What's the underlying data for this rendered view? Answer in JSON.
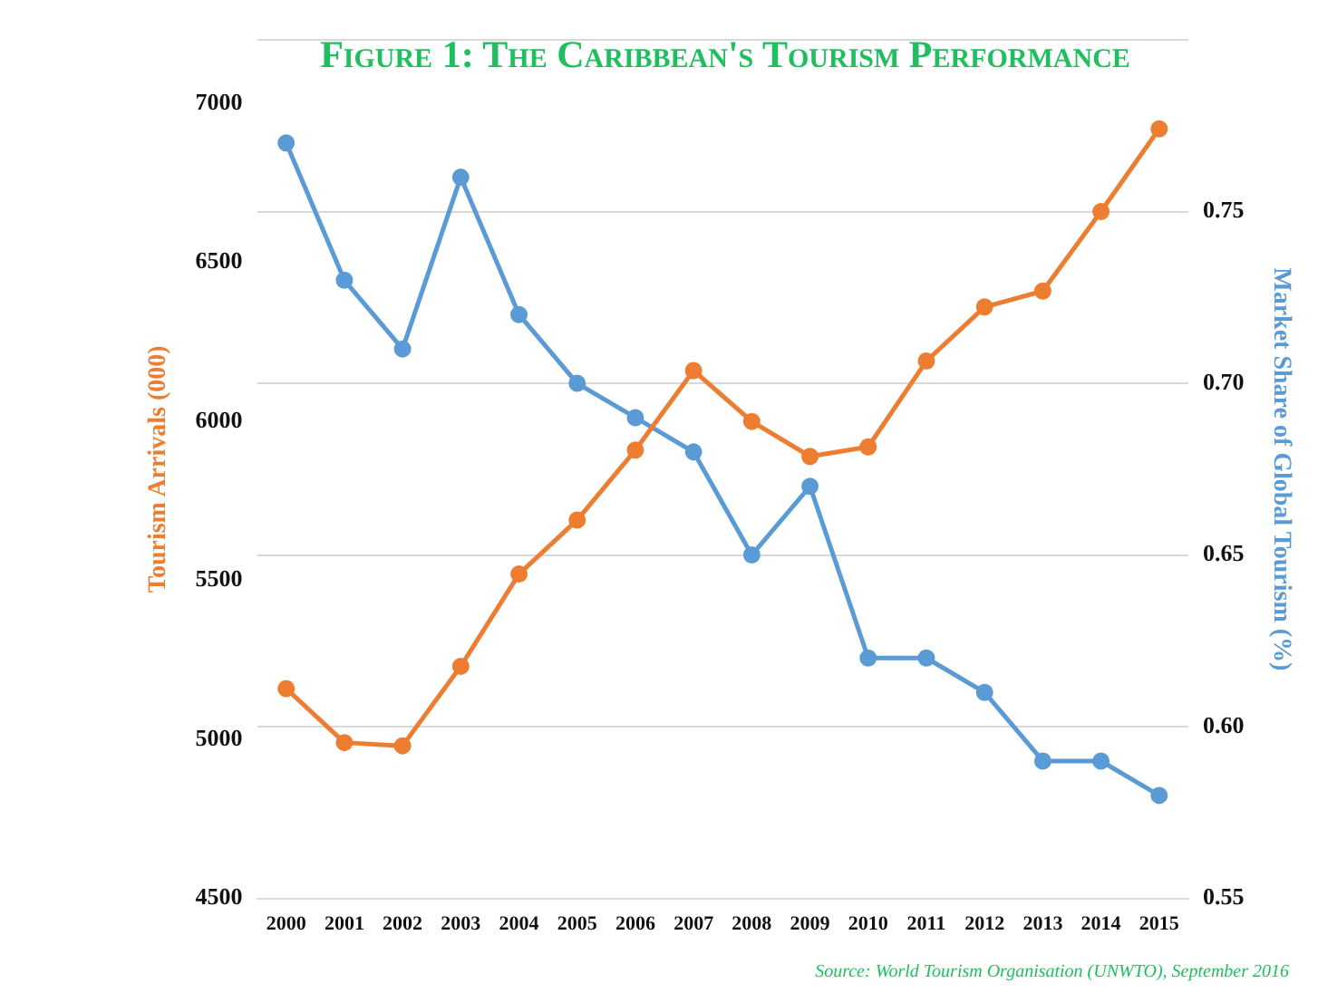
{
  "chart_data": {
    "type": "line",
    "title": "Figure 1: The Caribbean's Tourism Performance",
    "ylabel": "Tourism Arrivals (000)",
    "y2label": "Market Share of Global Tourism (%)",
    "categories": [
      "2000",
      "2001",
      "2002",
      "2003",
      "2004",
      "2005",
      "2006",
      "2007",
      "2008",
      "2009",
      "2010",
      "2011",
      "2012",
      "2013",
      "2014",
      "2015"
    ],
    "series": [
      {
        "color": "#ed7d31",
        "values": [
          5160,
          4990,
          4980,
          5230,
          5520,
          5690,
          5910,
          6160,
          6000,
          5890,
          5920,
          6190,
          6360,
          6410,
          6660,
          6920
        ]
      },
      {
        "color": "#5b9bd5",
        "axis": "y2",
        "values": [
          0.77,
          0.73,
          0.71,
          0.76,
          0.72,
          0.7,
          0.69,
          0.68,
          0.65,
          0.67,
          0.62,
          0.62,
          0.61,
          0.59,
          0.59,
          0.58
        ]
      }
    ],
    "ylim": [
      4500,
      7200
    ],
    "yticks": [
      4500,
      5000,
      5500,
      6000,
      6500,
      7000
    ],
    "y2lim": [
      0.55,
      0.8
    ],
    "y2ticks": [
      {
        "value": 0.55,
        "label": "0.55"
      },
      {
        "value": 0.6,
        "label": "0.60"
      },
      {
        "value": 0.65,
        "label": "0.65"
      },
      {
        "value": 0.7,
        "label": "0.70"
      },
      {
        "value": 0.75,
        "label": "0.75"
      },
      {
        "value": 0.8,
        "label": null
      }
    ],
    "grid": "y",
    "legend": false,
    "marker": "circle",
    "line_style": "solid",
    "annotations": [
      "Source: World Tourism Organisation (UNWTO), September 2016"
    ]
  }
}
